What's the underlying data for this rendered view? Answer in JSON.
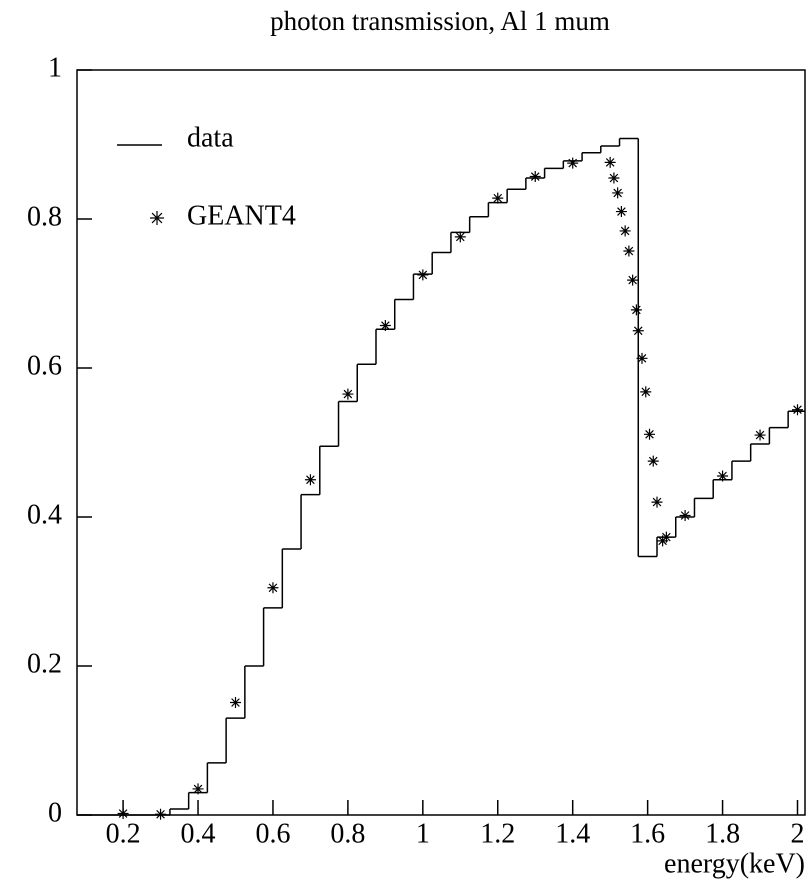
{
  "chart_data": {
    "type": "histogram",
    "title": "photon transmission, Al 1 mum",
    "x_label": "energy(keV)",
    "xlim": [
      0.077,
      2.02
    ],
    "ylim": [
      0,
      1
    ],
    "xticks": [
      0.2,
      0.4,
      0.6,
      0.8,
      1,
      1.2,
      1.4,
      1.6,
      1.8,
      2
    ],
    "yticks": [
      0,
      0.2,
      0.4,
      0.6,
      0.8,
      1
    ],
    "legend": "upper left",
    "bins": [
      0.075,
      0.125,
      0.175,
      0.225,
      0.275,
      0.325,
      0.375,
      0.425,
      0.475,
      0.525,
      0.575,
      0.625,
      0.675,
      0.725,
      0.775,
      0.825,
      0.875,
      0.925,
      0.975,
      1.025,
      1.075,
      1.125,
      1.175,
      1.225,
      1.275,
      1.325,
      1.375,
      1.425,
      1.475,
      1.525,
      1.575,
      1.625,
      1.675,
      1.725,
      1.775,
      1.825,
      1.875,
      1.925,
      1.975,
      2.025
    ],
    "series": [
      {
        "name": "data",
        "color": "#000000",
        "values": [
          0,
          0,
          0,
          0,
          0,
          0.008,
          0.03,
          0.07,
          0.13,
          0.2,
          0.278,
          0.357,
          0.43,
          0.495,
          0.555,
          0.605,
          0.652,
          0.692,
          0.726,
          0.755,
          0.782,
          0.803,
          0.822,
          0.84,
          0.855,
          0.868,
          0.878,
          0.889,
          0.898,
          0.908,
          0.347,
          0.373,
          0.4,
          0.425,
          0.45,
          0.475,
          0.498,
          0.52,
          0.542
        ]
      },
      {
        "name": "GEANT4",
        "type": "scatter",
        "color": "#000000",
        "x": [
          0.2,
          0.3,
          0.4,
          0.5,
          0.6,
          0.7,
          0.8,
          0.9,
          1.0,
          1.1,
          1.2,
          1.3,
          1.4,
          1.5,
          1.51,
          1.52,
          1.53,
          1.54,
          1.55,
          1.56,
          1.57,
          1.575,
          1.585,
          1.595,
          1.605,
          1.615,
          1.625,
          1.64,
          1.65,
          1.7,
          1.8,
          1.9,
          2.0
        ],
        "values": [
          0.002,
          0.001,
          0.035,
          0.151,
          0.305,
          0.45,
          0.565,
          0.657,
          0.725,
          0.776,
          0.828,
          0.857,
          0.875,
          0.876,
          0.855,
          0.835,
          0.81,
          0.784,
          0.757,
          0.718,
          0.678,
          0.65,
          0.613,
          0.568,
          0.511,
          0.475,
          0.42,
          0.368,
          0.373,
          0.402,
          0.455,
          0.51,
          0.544
        ]
      }
    ]
  }
}
